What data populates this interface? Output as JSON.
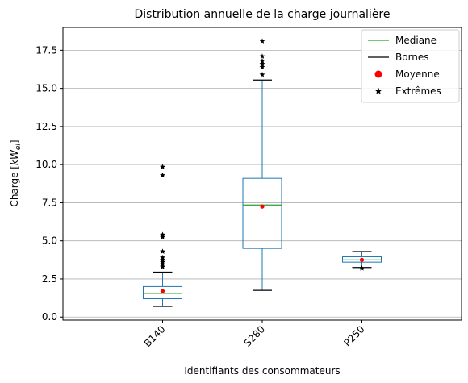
{
  "chart_data": {
    "type": "box",
    "title": "Distribution annuelle de la charge journalière",
    "xlabel": "Identifiants des consommateurs",
    "ylabel_prefix": "Charge [",
    "ylabel_unit": "kW",
    "ylabel_subscript": "el",
    "ylabel_suffix": "]",
    "ylim": [
      -0.2,
      19.0
    ],
    "yticks": [
      "0.0",
      "2.5",
      "5.0",
      "7.5",
      "10.0",
      "12.5",
      "15.0",
      "17.5"
    ],
    "ytick_values": [
      0,
      2.5,
      5,
      7.5,
      10,
      12.5,
      15,
      17.5
    ],
    "grid": "horizontal",
    "legend_position": "top-right",
    "categories": [
      "B140",
      "S280",
      "P250"
    ],
    "boxes": [
      {
        "name": "B140",
        "whisker_low": 0.7,
        "q1": 1.2,
        "median": 1.55,
        "q3": 2.0,
        "whisker_high": 2.95,
        "mean": 1.7,
        "outliers": [
          3.3,
          3.45,
          3.6,
          3.75,
          3.9,
          4.3,
          5.25,
          5.4,
          9.3,
          9.85
        ]
      },
      {
        "name": "S280",
        "whisker_low": 1.75,
        "q1": 4.5,
        "median": 7.35,
        "q3": 9.1,
        "whisker_high": 15.55,
        "mean": 7.25,
        "outliers": [
          15.9,
          16.4,
          16.6,
          16.8,
          17.1,
          18.1
        ]
      },
      {
        "name": "P250",
        "whisker_low": 3.25,
        "q1": 3.6,
        "median": 3.75,
        "q3": 3.95,
        "whisker_high": 4.3,
        "mean": 3.75,
        "outliers": [
          3.2
        ]
      }
    ],
    "legend": [
      {
        "label": "Mediane",
        "kind": "line",
        "color": "#2ca02c"
      },
      {
        "label": "Bornes",
        "kind": "line",
        "color": "#000000"
      },
      {
        "label": "Moyenne",
        "kind": "dot",
        "color": "#ff0000"
      },
      {
        "label": "Extrêmes",
        "kind": "star",
        "color": "#000000"
      }
    ],
    "colors": {
      "box": "#1f77b4",
      "median": "#2ca02c",
      "whisker_cap": "#000000",
      "mean": "#ff0000",
      "outlier": "#000000",
      "grid": "#b0b0b0"
    }
  }
}
